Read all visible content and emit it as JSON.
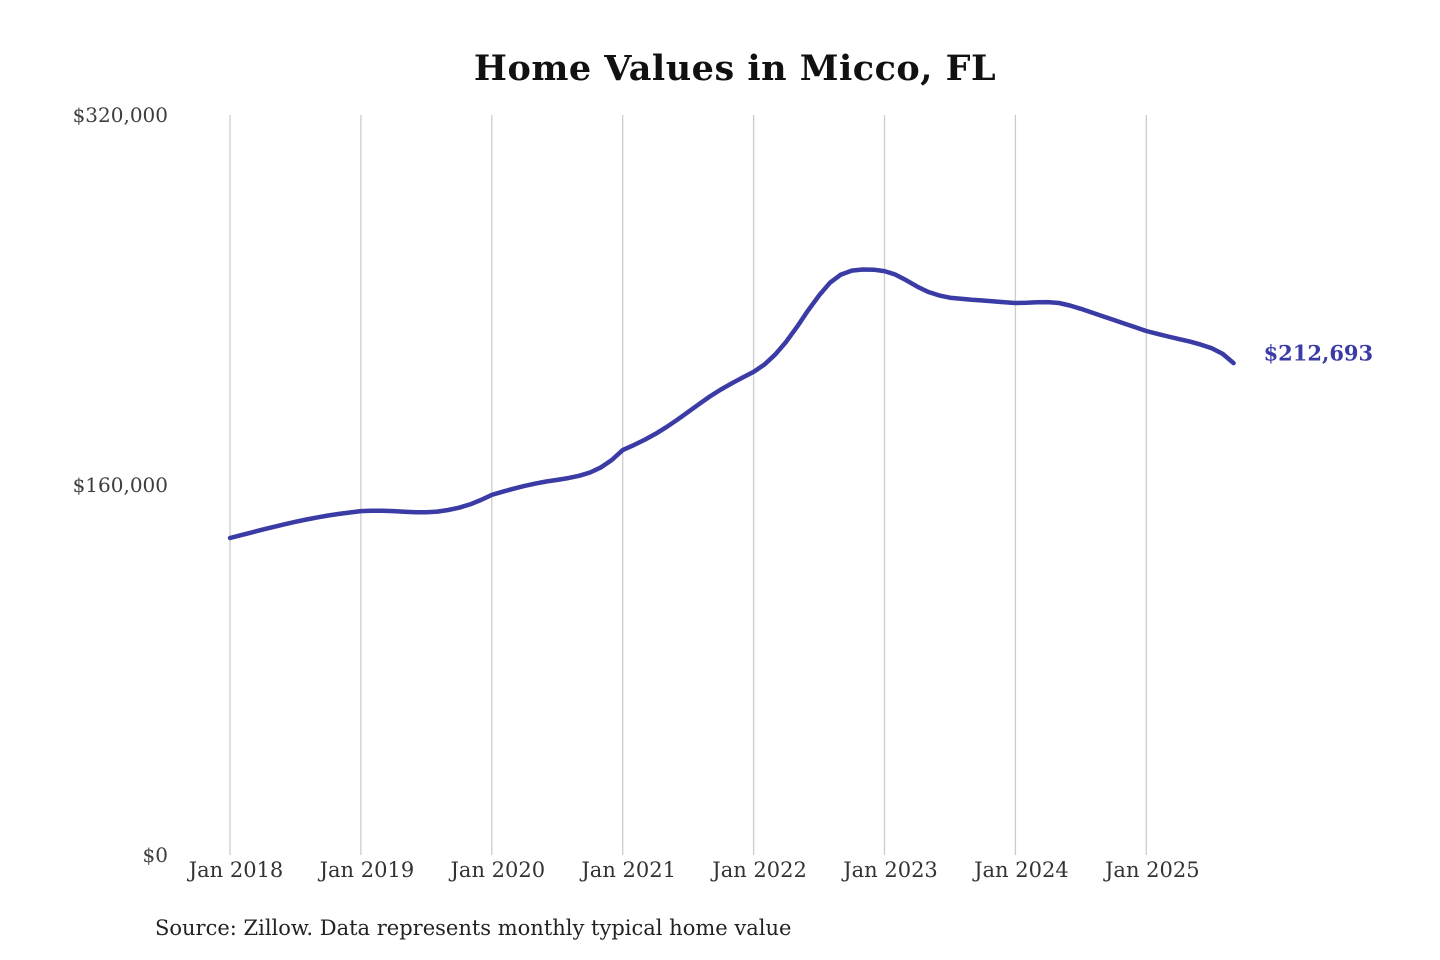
{
  "chart": {
    "title": "Home Values in Micco, FL",
    "source": "Source: Zillow. Data represents monthly typical home value",
    "end_label": "$212,693",
    "accent_color": "#3b3ba6",
    "gridline_color": "#cccccc"
  },
  "chart_data": {
    "type": "line",
    "title": "Home Values in Micco, FL",
    "xlabel": "",
    "ylabel": "",
    "ylim": [
      0,
      320000
    ],
    "grid": "vertical-only",
    "legend_position": "none",
    "y_ticks": [
      {
        "value": 0,
        "label": "$0"
      },
      {
        "value": 160000,
        "label": "$160,000"
      },
      {
        "value": 320000,
        "label": "$320,000"
      }
    ],
    "x_ticks": [
      "Jan 2018",
      "Jan 2019",
      "Jan 2020",
      "Jan 2021",
      "Jan 2022",
      "Jan 2023",
      "Jan 2024",
      "Jan 2025"
    ],
    "annotations": [
      {
        "text": "$212,693",
        "attach": "last-point"
      }
    ],
    "source": "Source: Zillow. Data represents monthly typical home value",
    "series": [
      {
        "name": "Monthly typical home value",
        "color": "#3b3ba6",
        "start_month": "2018-01",
        "end_month": "2025-09",
        "frequency": "monthly",
        "end_value": 212693,
        "points": [
          137100,
          138300,
          139500,
          140700,
          141900,
          143000,
          144100,
          145100,
          146000,
          146800,
          147500,
          148100,
          148700,
          148900,
          148900,
          148700,
          148400,
          148200,
          148200,
          148500,
          149200,
          150200,
          151600,
          153500,
          155700,
          157100,
          158400,
          159600,
          160600,
          161500,
          162200,
          163000,
          164000,
          165400,
          167600,
          170800,
          175100,
          177200,
          179500,
          182100,
          185000,
          188200,
          191600,
          195000,
          198300,
          201300,
          204000,
          206500,
          208900,
          212100,
          216500,
          222000,
          228500,
          235500,
          242000,
          247500,
          251000,
          252700,
          253200,
          253100,
          252500,
          251000,
          248500,
          245800,
          243500,
          242000,
          241000,
          240500,
          240100,
          239800,
          239400,
          239000,
          238700,
          238800,
          239000,
          239100,
          238700,
          237600,
          236200,
          234600,
          233000,
          231400,
          229800,
          228200,
          226600,
          225400,
          224200,
          223100,
          222000,
          220700,
          219100,
          216700,
          212693
        ]
      }
    ]
  }
}
